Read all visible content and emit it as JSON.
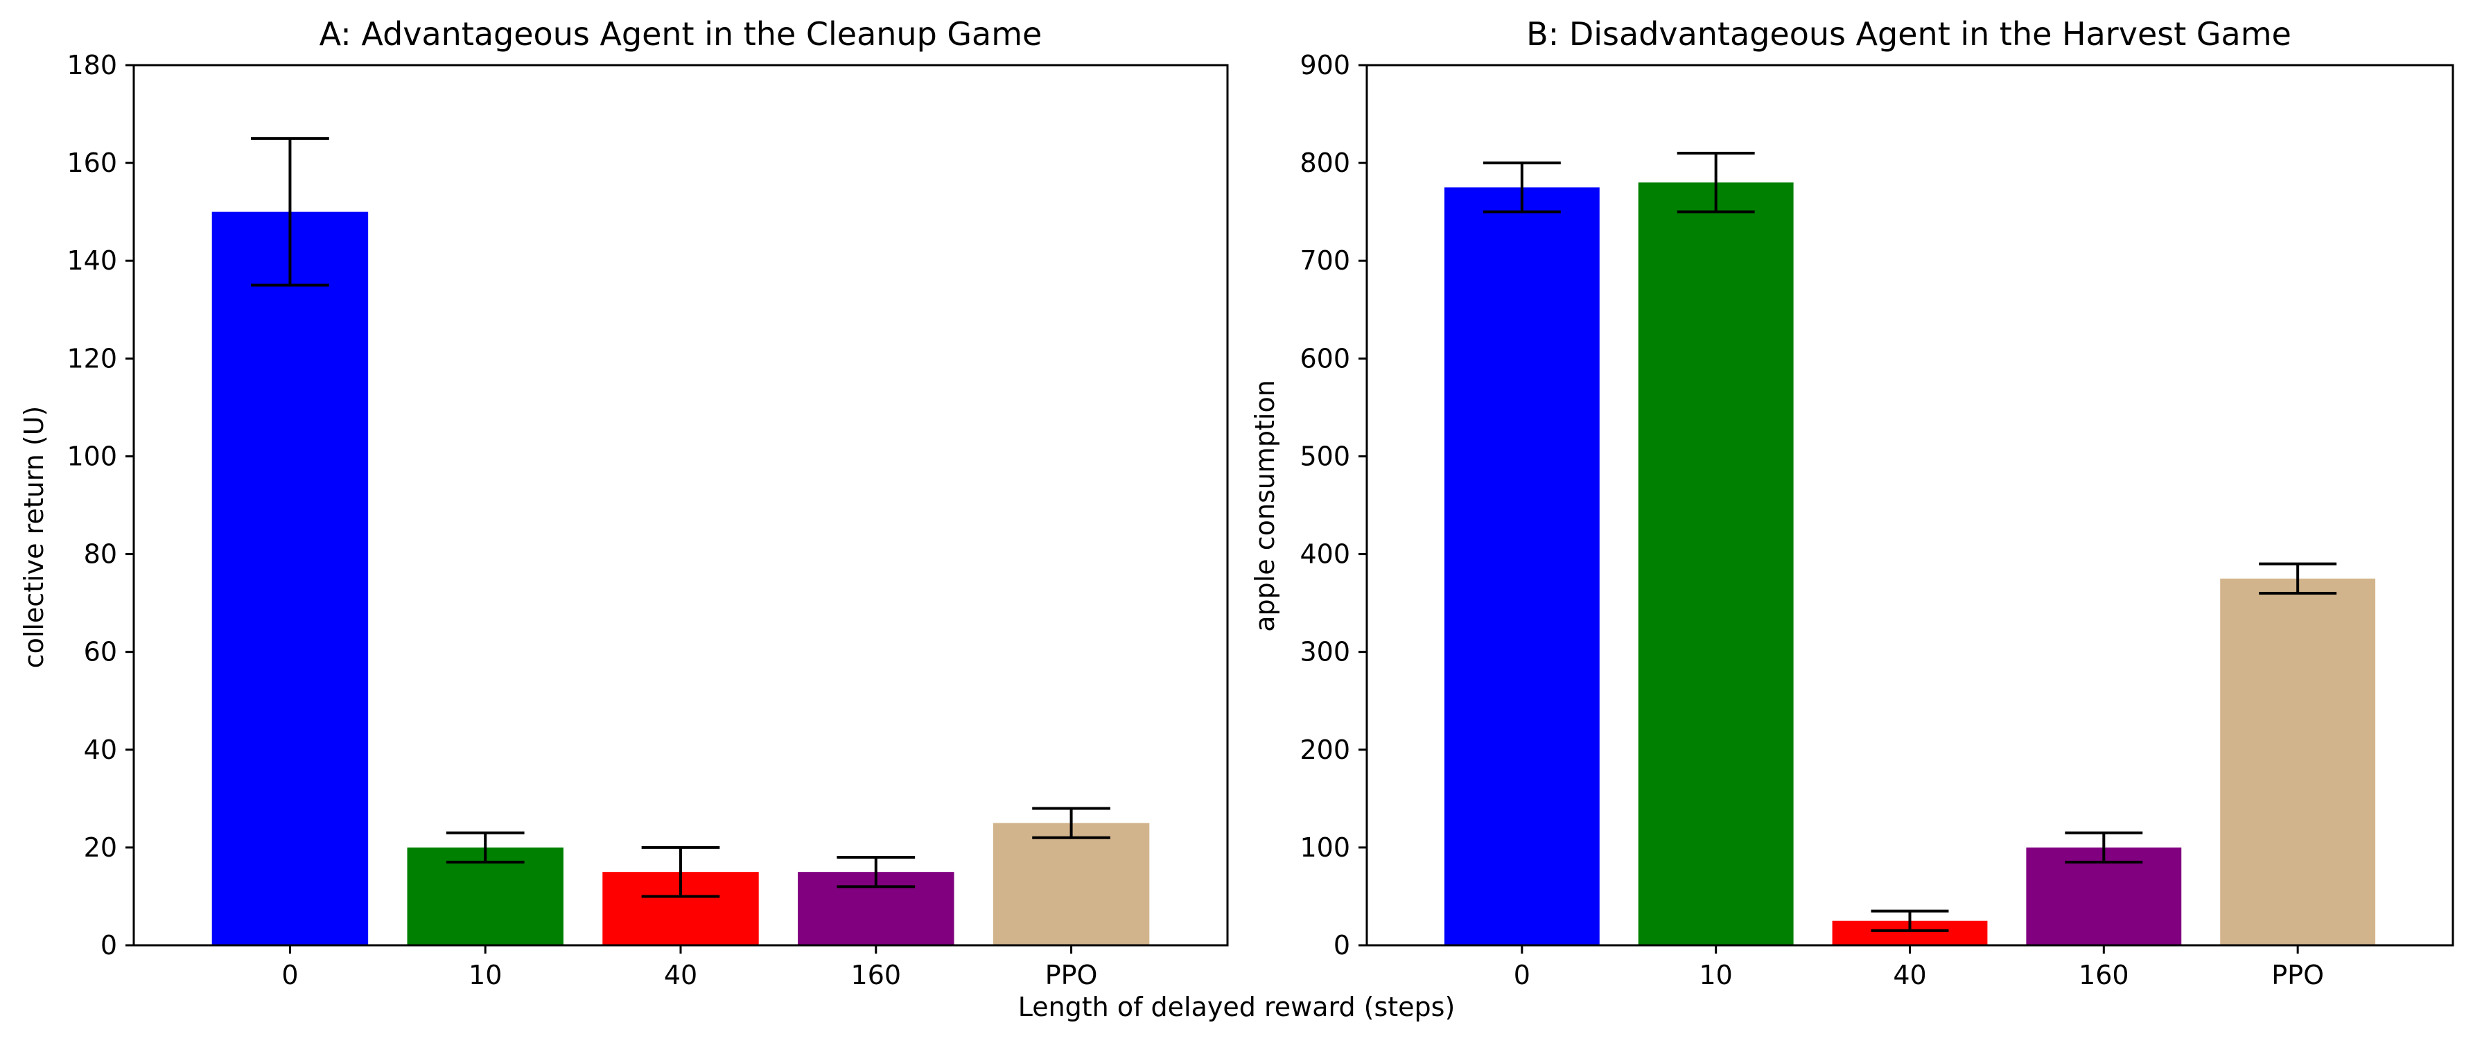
{
  "figure": {
    "shared_xlabel": "Length of delayed reward (steps)"
  },
  "chart_data": [
    {
      "type": "bar",
      "title": "A: Advantageous Agent in the Cleanup Game",
      "xlabel": "",
      "ylabel": "collective return (U)",
      "categories": [
        "0",
        "10",
        "40",
        "160",
        "PPO"
      ],
      "values": [
        150,
        20,
        15,
        15,
        25
      ],
      "errors": [
        15,
        3,
        5,
        3,
        3
      ],
      "colors": [
        "#0000ff",
        "#008000",
        "#ff0000",
        "#800080",
        "#d2b48c"
      ],
      "ylim": [
        0,
        180
      ],
      "yticks": [
        0,
        20,
        40,
        60,
        80,
        100,
        120,
        140,
        160,
        180
      ],
      "grid": false
    },
    {
      "type": "bar",
      "title": "B: Disadvantageous Agent in the Harvest Game",
      "xlabel": "",
      "ylabel": "apple consumption",
      "categories": [
        "0",
        "10",
        "40",
        "160",
        "PPO"
      ],
      "values": [
        775,
        780,
        25,
        100,
        375
      ],
      "errors": [
        25,
        30,
        10,
        15,
        15
      ],
      "colors": [
        "#0000ff",
        "#008000",
        "#ff0000",
        "#800080",
        "#d2b48c"
      ],
      "ylim": [
        0,
        900
      ],
      "yticks": [
        0,
        100,
        200,
        300,
        400,
        500,
        600,
        700,
        800,
        900
      ],
      "grid": false
    }
  ]
}
